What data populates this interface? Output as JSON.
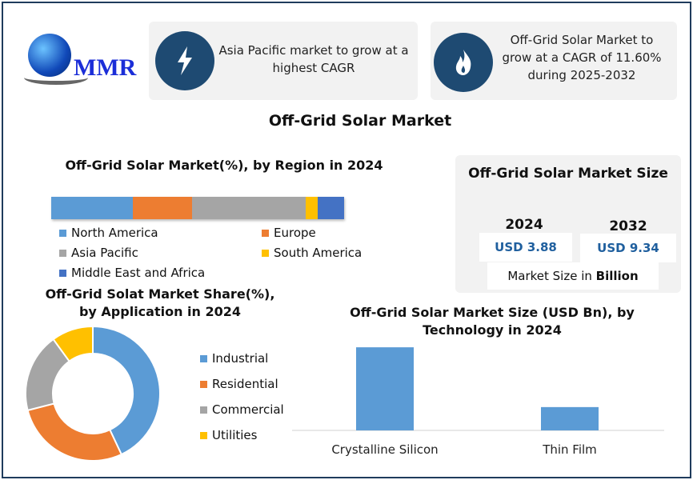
{
  "logo": {
    "text": "MMR"
  },
  "cards": [
    {
      "icon": "lightning-icon",
      "text": "Asia Pacific market to grow at a highest CAGR"
    },
    {
      "icon": "flame-icon",
      "text": "Off-Grid Solar Market to grow at a CAGR of 11.60% during 2025-2032"
    }
  ],
  "main_title": "Off-Grid Solar Market",
  "market_size": {
    "title": "Off-Grid Solar Market Size",
    "years": [
      "2024",
      "2032"
    ],
    "values": [
      "USD 3.88",
      "USD 9.34"
    ],
    "note_prefix": "Market Size in ",
    "note_bold": "Billion"
  },
  "colors": {
    "blue": "#5b9bd5",
    "orange": "#ed7d31",
    "gray": "#a5a5a5",
    "yellow": "#ffc000",
    "darkblue": "#4472c4",
    "icon_bg": "#1e4a72"
  },
  "chart_data": [
    {
      "type": "bar",
      "orientation": "horizontal-stacked-100",
      "title": "Off-Grid Solar Market(%), by Region in 2024",
      "categories": [
        "North America",
        "Europe",
        "Asia Pacific",
        "South America",
        "Middle East and Africa"
      ],
      "values": [
        28,
        20,
        39,
        4,
        9
      ],
      "legend": "bottom"
    },
    {
      "type": "pie",
      "donut": true,
      "title": "Off-Grid Solat Market Share(%), by Application in 2024",
      "categories": [
        "Industrial",
        "Residential",
        "Commercial",
        "Utilities"
      ],
      "values": [
        43,
        28,
        19,
        10
      ],
      "legend": "right"
    },
    {
      "type": "bar",
      "title": "Off-Grid Solar Market Size (USD Bn), by Technology in 2024",
      "categories": [
        "Crystalline Silicon",
        "Thin Film"
      ],
      "values": [
        3.03,
        0.85
      ],
      "ylim": [
        0,
        3.5
      ]
    }
  ]
}
